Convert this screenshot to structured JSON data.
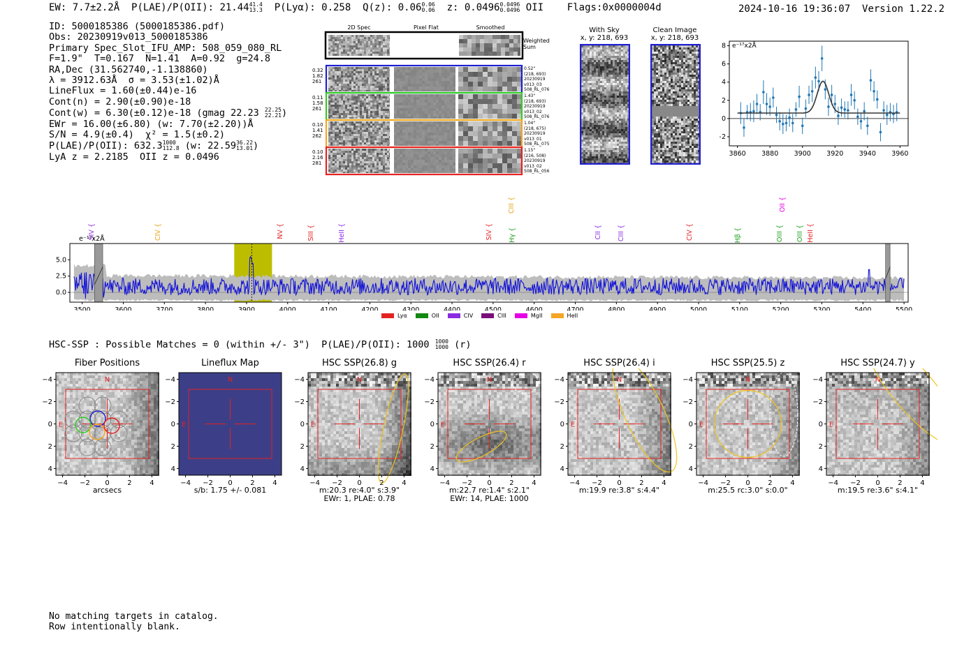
{
  "header": {
    "ew": "EW: 7.7±2.2Å",
    "plae": "P(LAE)/P(OII): 21.44",
    "plae_sup": "41.4",
    "plae_sub": "13.3",
    "plya": "P(Lyα): 0.258",
    "qz": "Q(z): 0.06",
    "qz_sup": "0.06",
    "qz_sub": "0.06",
    "z": "z: 0.0496",
    "z_sup": "0.0496",
    "z_sub": "0.0496",
    "z_line": "OII",
    "flags": "Flags:0x0000004d",
    "timestamp": "2024-10-16 19:36:07",
    "version": "Version 1.22.2"
  },
  "info": {
    "id": "ID: 5000185386 (5000185386.pdf)",
    "obs": "Obs: 20230919v013_5000185386",
    "primary": "Primary Spec_Slot_IFU_AMP: 508_059_080_RL",
    "f_line": "F=1.9\"  T=0.167  N=1.41  A=0.92  g=24.8",
    "radec": "RA,Dec (31.562740,-1.138860)",
    "lambda": "λ = 3912.63Å  σ = 3.53(±1.02)Å",
    "lineflux": "LineFlux = 1.60(±0.44)e-16",
    "contn": "Cont(n) = 2.90(±0.90)e-18",
    "contw": "Cont(w) = 6.30(±0.12)e-18 (gmag 22.23",
    "contw_sup": "22.25",
    "contw_sub": "22.21",
    "contw_end": ")",
    "ewr": "EWr = 16.00(±6.80) (w: 7.70(±2.20))Å",
    "sn": "S/N = 4.9(±0.4)  χ² = 1.5(±0.2)",
    "plae": "P(LAE)/P(OII): 632.3",
    "plae_sup": "1000",
    "plae_sub": "112.8",
    "plae_w": "(w: 22.59",
    "plae_w_sup": "36.22",
    "plae_w_sub": "13.01",
    "plae_w_end": ")",
    "lyaz": "LyA z = 2.2185  OII z = 0.0496"
  },
  "cutouts": {
    "col_titles": [
      "2D Spec",
      "Pixel Flat",
      "Smoothed"
    ],
    "weighted_label": "Weighted\nSum",
    "rows": [
      {
        "left": "0.32\n1.82\n261",
        "right": "0.52\"\n(218, 693)\n20230919\nv013_03\n508_RL_076",
        "color": "#1f1fd0"
      },
      {
        "left": "0.11\n1.58\n261",
        "right": "1.43\"\n(218, 693)\n20230919\nv013_02\n508_RL_076",
        "color": "#33cc22"
      },
      {
        "left": "0.10\n1.41\n262",
        "right": "1.04\"\n(218, 675)\n20230919\nv013_01\n508_RL_075",
        "color": "#f5a623"
      },
      {
        "left": "0.10\n2.16\n281",
        "right": "1.15\"\n(216, 508)\n20230919\nv013_02\n508_RL_056",
        "color": "#e52222"
      }
    ]
  },
  "sky_panels": {
    "with_sky": "With Sky",
    "with_sky_xy": "x, y: 218, 693",
    "clean": "Clean Image",
    "clean_xy": "x, y: 218, 693"
  },
  "zoom_chart": {
    "unit_label": "e⁻¹⁷x2Å",
    "x_ticks": [
      "3860",
      "3880",
      "3900",
      "3920",
      "3940",
      "3960"
    ],
    "y_ticks": [
      "8",
      "6",
      "4",
      "2",
      "0",
      "−2"
    ]
  },
  "full_spectrum": {
    "unit_label": "e⁻¹⁷x2Å",
    "y_ticks": [
      "5.0",
      "2.5",
      "0.0"
    ],
    "x_ticks": [
      "3500",
      "3600",
      "3700",
      "3800",
      "3900",
      "4000",
      "4100",
      "4200",
      "4300",
      "4400",
      "4500",
      "4600",
      "4700",
      "4800",
      "4900",
      "5000",
      "5100",
      "5200",
      "5300",
      "5400",
      "5500"
    ],
    "lines": [
      {
        "label": "SIV",
        "color": "#8a2be2"
      },
      {
        "label": "CIV",
        "color": "#e8a317"
      },
      {
        "label": "NV",
        "color": "#e52222"
      },
      {
        "label": "SIII",
        "color": "#e52222"
      },
      {
        "label": "HeII",
        "color": "#8a2be2"
      },
      {
        "label": "SIV",
        "color": "#e52222"
      },
      {
        "label": "Hγ",
        "color": "#22a022"
      },
      {
        "label": "CIII",
        "color": "#e8a317"
      },
      {
        "label": "CII",
        "color": "#8a2be2"
      },
      {
        "label": "CIII",
        "color": "#8a2be2"
      },
      {
        "label": "CIV",
        "color": "#e52222"
      },
      {
        "label": "Hβ",
        "color": "#22a022"
      },
      {
        "label": "OII",
        "color": "#e600e6"
      },
      {
        "label": "OIII",
        "color": "#22a022"
      },
      {
        "label": "OIII",
        "color": "#22a022"
      },
      {
        "label": "HeII",
        "color": "#e52222"
      }
    ],
    "legend": [
      {
        "label": "Lyα",
        "color": "#e52222"
      },
      {
        "label": "OII",
        "color": "#118811"
      },
      {
        "label": "CIV",
        "color": "#8a2be2"
      },
      {
        "label": "CIII",
        "color": "#7a0f7a"
      },
      {
        "label": "MgII",
        "color": "#e600e6"
      },
      {
        "label": "HeII",
        "color": "#f5a623"
      }
    ]
  },
  "hsc": {
    "line": "HSC-SSP : Possible Matches = 0 (within +/- 3\")  P(LAE)/P(OII): 1000",
    "line_sup": "1000",
    "line_sub": "1000",
    "line_end": "(r)",
    "x_ticks": [
      "−4",
      "−2",
      "0",
      "2",
      "4"
    ],
    "y_ticks": [
      "4",
      "2",
      "0",
      "−2",
      "−4"
    ],
    "panels": [
      {
        "title": "Fiber Positions",
        "caption1": "arcsecs",
        "caption2": ""
      },
      {
        "title": "Lineflux Map",
        "caption1": "s/b: 1.75 +/- 0.081",
        "caption2": ""
      },
      {
        "title": "HSC SSP(26.8) g",
        "caption1": "m:20.3  re:4.0\"  s:3.9\"",
        "caption2": "EWr: 1, PLAE: 0.78"
      },
      {
        "title": "HSC SSP(26.4) r",
        "caption1": "m:22.7  re:1.4\"  s:2.1\"",
        "caption2": "EWr: 14, PLAE: 1000"
      },
      {
        "title": "HSC SSP(26.4) i",
        "caption1": "m:19.9  re:3.8\"  s:4.4\"",
        "caption2": ""
      },
      {
        "title": "HSC SSP(25.5) z",
        "caption1": "m:25.5  rc:3.0\"  s:0.0\"",
        "caption2": ""
      },
      {
        "title": "HSC SSP(24.7) y",
        "caption1": "m:19.5  re:3.6\"  s:4.1\"",
        "caption2": ""
      }
    ],
    "n_label": "N",
    "e_label": "E"
  },
  "footer": {
    "line1": "No matching targets in catalog.",
    "line2": "Row intentionally blank."
  }
}
